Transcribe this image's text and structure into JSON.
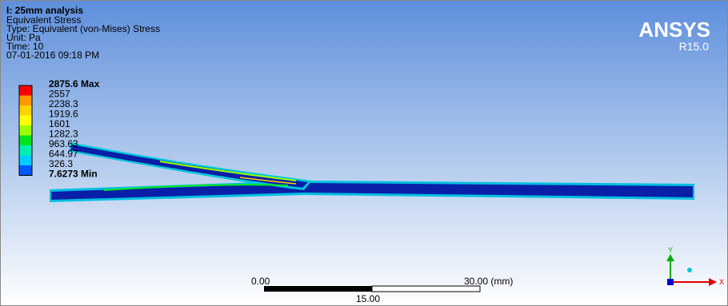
{
  "header": {
    "title": "I: 25mm analysis",
    "lines": [
      "Equivalent Stress",
      "Type: Equivalent (von-Mises) Stress",
      "Unit: Pa",
      "Time: 10",
      "07-01-2016 09:18 PM"
    ]
  },
  "logo": {
    "name": "ANSYS",
    "version": "R15.0"
  },
  "legend": {
    "max": "2875.6 Max",
    "labels": [
      "2557",
      "2238.3",
      "1919.6",
      "1601",
      "1282.3",
      "963.63",
      "644.97",
      "326.3"
    ],
    "min": "7.6273 Min",
    "colors": [
      "#ff0000",
      "#ff9900",
      "#ffd200",
      "#ffff00",
      "#9eff00",
      "#00e61e",
      "#00f0b4",
      "#00ccff",
      "#0058ff"
    ]
  },
  "scale_bar": {
    "start": "0.00",
    "end": "30.00 (mm)",
    "mid": "15.00"
  },
  "triad": {
    "y": "Y",
    "x": "X"
  }
}
